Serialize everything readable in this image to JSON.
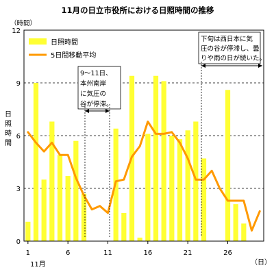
{
  "chart_data": {
    "type": "bar",
    "title": "11月の日立市役所における日照時間の推移",
    "y_unit": "（時間）",
    "ylabel": "日照時間",
    "x_month": "11月",
    "x_unit": "（日）",
    "ylim": [
      0,
      12
    ],
    "yticks": [
      0,
      3,
      6,
      9,
      12
    ],
    "xtick_days": [
      1,
      6,
      11,
      16,
      21,
      26
    ],
    "x": [
      1,
      2,
      3,
      4,
      5,
      6,
      7,
      8,
      9,
      10,
      11,
      12,
      13,
      14,
      15,
      16,
      17,
      18,
      19,
      20,
      21,
      22,
      23,
      24,
      25,
      26,
      27,
      28,
      29,
      30
    ],
    "series": [
      {
        "name": "日照時間",
        "type": "bar",
        "color": "#FFFF33",
        "values": [
          1.1,
          9.0,
          3.5,
          6.8,
          4.9,
          3.7,
          5.7,
          2.7,
          0,
          0,
          0,
          6.4,
          1.6,
          9.4,
          0.2,
          6.1,
          9.4,
          9.1,
          6.0,
          5.8,
          6.3,
          6.8,
          4.7,
          0,
          0,
          8.6,
          2.1,
          1.0,
          0,
          0
        ]
      },
      {
        "name": "5日間移動平均",
        "type": "line",
        "color": "#FF9900",
        "values": [
          6.2,
          5.6,
          5.1,
          5.6,
          4.9,
          4.9,
          3.6,
          2.6,
          1.8,
          2.0,
          1.6,
          3.4,
          3.5,
          4.8,
          5.4,
          6.8,
          6.1,
          6.1,
          6.2,
          5.6,
          4.7,
          3.5,
          3.5,
          4.0,
          3.0,
          2.3,
          2.3,
          2.3,
          0.6,
          1.7
        ]
      }
    ],
    "annotations": [
      {
        "id": "a1",
        "lines": [
          "9～11日、",
          "本州南岸",
          "に気圧の",
          "谷が停滞。"
        ]
      },
      {
        "id": "a2",
        "lines": [
          "下旬は西日本に気",
          "圧の谷が停滞し、曇",
          "りや雨の日が続いた。"
        ]
      }
    ],
    "grid": true,
    "legend_position": "top-left"
  }
}
